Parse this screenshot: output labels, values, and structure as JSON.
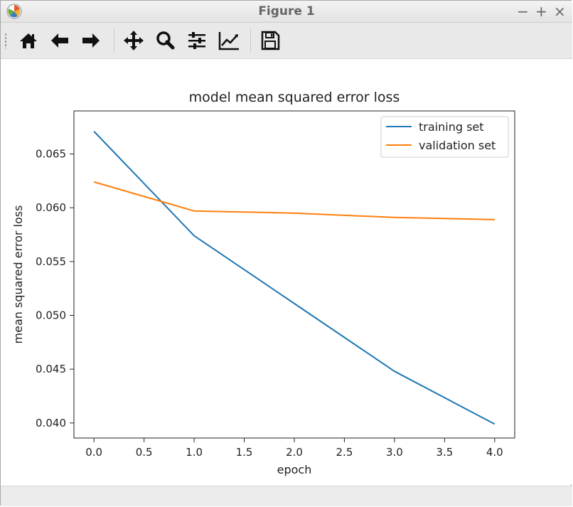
{
  "window": {
    "title": "Figure 1",
    "controls": [
      "−",
      "+",
      "×"
    ]
  },
  "toolbar": {
    "buttons": [
      {
        "name": "home-icon"
      },
      {
        "name": "back-arrow-icon"
      },
      {
        "name": "forward-arrow-icon"
      },
      {
        "name": "pan-icon"
      },
      {
        "name": "zoom-icon"
      },
      {
        "name": "configure-subplots-icon"
      },
      {
        "name": "edit-axis-icon"
      },
      {
        "name": "save-icon"
      }
    ]
  },
  "colors": {
    "training": "#1f77b4",
    "validation": "#ff7f0e"
  },
  "chart_data": {
    "type": "line",
    "title": "model mean squared error loss",
    "xlabel": "epoch",
    "ylabel": "mean squared error loss",
    "x": [
      0,
      1,
      2,
      3,
      4
    ],
    "xlim": [
      -0.2,
      4.2
    ],
    "ylim": [
      0.0386,
      0.069
    ],
    "xticks": [
      0.0,
      0.5,
      1.0,
      1.5,
      2.0,
      2.5,
      3.0,
      3.5,
      4.0
    ],
    "xtick_labels": [
      "0.0",
      "0.5",
      "1.0",
      "1.5",
      "2.0",
      "2.5",
      "3.0",
      "3.5",
      "4.0"
    ],
    "yticks": [
      0.04,
      0.045,
      0.05,
      0.055,
      0.06,
      0.065
    ],
    "ytick_labels": [
      "0.040",
      "0.045",
      "0.050",
      "0.055",
      "0.060",
      "0.065"
    ],
    "grid": false,
    "legend_position": "top-right",
    "series": [
      {
        "name": "training set",
        "values": [
          0.0671,
          0.0574,
          0.0511,
          0.0448,
          0.0399
        ]
      },
      {
        "name": "validation set",
        "values": [
          0.0624,
          0.0597,
          0.0595,
          0.0591,
          0.0589
        ]
      }
    ]
  }
}
